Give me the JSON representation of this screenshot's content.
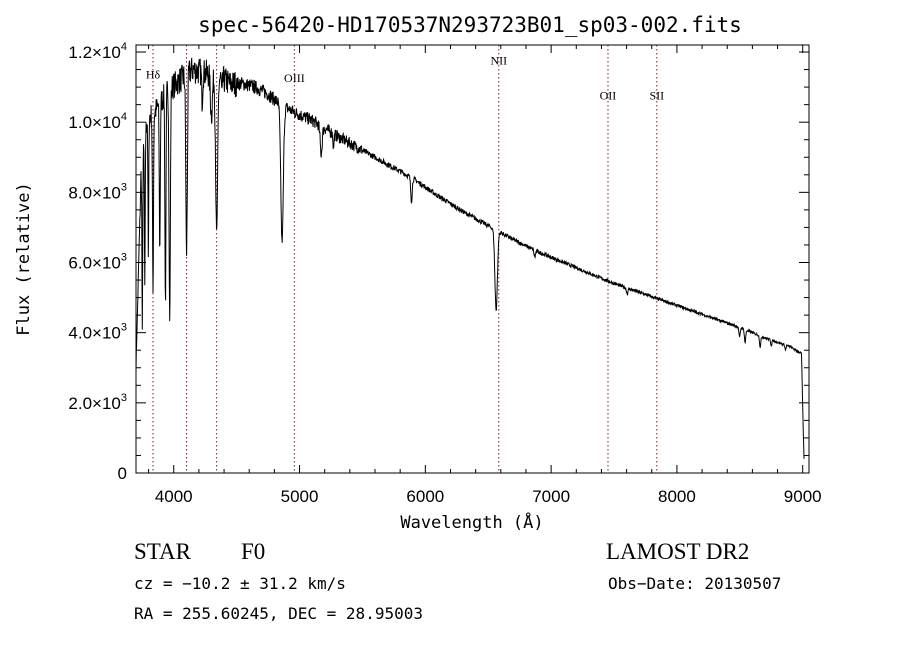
{
  "chart_data": {
    "type": "line",
    "title": "spec-56420-HD170537N293723B01_sp03-002.fits",
    "xlabel": "Wavelength (Å)",
    "ylabel": "Flux (relative)",
    "xlim": [
      3700,
      9050
    ],
    "ylim": [
      0,
      12200
    ],
    "x_ticks": [
      {
        "value": 4000,
        "label": "4000"
      },
      {
        "value": 5000,
        "label": "5000"
      },
      {
        "value": 6000,
        "label": "6000"
      },
      {
        "value": 7000,
        "label": "7000"
      },
      {
        "value": 8000,
        "label": "8000"
      },
      {
        "value": 9000,
        "label": "9000"
      }
    ],
    "y_ticks": [
      {
        "value": 0,
        "mant": "0",
        "exp": ""
      },
      {
        "value": 2000,
        "mant": "2.0×10",
        "exp": "3"
      },
      {
        "value": 4000,
        "mant": "4.0×10",
        "exp": "3"
      },
      {
        "value": 6000,
        "mant": "6.0×10",
        "exp": "3"
      },
      {
        "value": 8000,
        "mant": "8.0×10",
        "exp": "3"
      },
      {
        "value": 10000,
        "mant": "1.0×10",
        "exp": "4"
      },
      {
        "value": 12000,
        "mant": "1.2×10",
        "exp": "4"
      }
    ],
    "grid": false,
    "line_color": "#000000",
    "marker_color": "#8b1a1a",
    "line_markers": [
      {
        "wavelength": 3835,
        "label": "Hδ",
        "label_y": 11250
      },
      {
        "wavelength": 4102,
        "label": "",
        "label_y": 11900
      },
      {
        "wavelength": 4341,
        "label": "",
        "label_y": 10800
      },
      {
        "wavelength": 4959,
        "label": "OIII",
        "label_y": 11150
      },
      {
        "wavelength": 6584,
        "label": "NII",
        "label_y": 11650
      },
      {
        "wavelength": 7452,
        "label": "OII",
        "label_y": 10650
      },
      {
        "wavelength": 7840,
        "label": "SII",
        "label_y": 10650
      }
    ],
    "continuum": [
      [
        3700,
        3000
      ],
      [
        3740,
        8500
      ],
      [
        3790,
        10100
      ],
      [
        3850,
        10300
      ],
      [
        3950,
        10900
      ],
      [
        4050,
        11200
      ],
      [
        4150,
        11500
      ],
      [
        4250,
        11400
      ],
      [
        4350,
        11300
      ],
      [
        4450,
        11100
      ],
      [
        4550,
        11100
      ],
      [
        4650,
        11000
      ],
      [
        4750,
        10800
      ],
      [
        4850,
        10500
      ],
      [
        4950,
        10300
      ],
      [
        5100,
        10050
      ],
      [
        5300,
        9600
      ],
      [
        5500,
        9200
      ],
      [
        5700,
        8800
      ],
      [
        5900,
        8400
      ],
      [
        6100,
        7900
      ],
      [
        6300,
        7450
      ],
      [
        6500,
        7050
      ],
      [
        6700,
        6650
      ],
      [
        6900,
        6300
      ],
      [
        7100,
        6000
      ],
      [
        7300,
        5700
      ],
      [
        7500,
        5400
      ],
      [
        7700,
        5150
      ],
      [
        7900,
        4900
      ],
      [
        8100,
        4650
      ],
      [
        8300,
        4400
      ],
      [
        8500,
        4150
      ],
      [
        8700,
        3850
      ],
      [
        8900,
        3600
      ],
      [
        8990,
        3400
      ],
      [
        9010,
        400
      ]
    ],
    "absorption_lines": [
      {
        "center": 3750,
        "depth": 0.55,
        "width": 3
      },
      {
        "center": 3770,
        "depth": 0.45,
        "width": 3
      },
      {
        "center": 3798,
        "depth": 0.4,
        "width": 3
      },
      {
        "center": 3835,
        "depth": 0.5,
        "width": 4
      },
      {
        "center": 3889,
        "depth": 0.4,
        "width": 4
      },
      {
        "center": 3934,
        "depth": 0.55,
        "width": 4
      },
      {
        "center": 3968,
        "depth": 0.6,
        "width": 5
      },
      {
        "center": 4102,
        "depth": 0.45,
        "width": 6
      },
      {
        "center": 4226,
        "depth": 0.07,
        "width": 4
      },
      {
        "center": 4300,
        "depth": 0.1,
        "width": 8
      },
      {
        "center": 4341,
        "depth": 0.4,
        "width": 8
      },
      {
        "center": 4383,
        "depth": 0.05,
        "width": 3
      },
      {
        "center": 4861,
        "depth": 0.37,
        "width": 10
      },
      {
        "center": 5172,
        "depth": 0.08,
        "width": 8
      },
      {
        "center": 5270,
        "depth": 0.04,
        "width": 4
      },
      {
        "center": 5890,
        "depth": 0.08,
        "width": 6
      },
      {
        "center": 6563,
        "depth": 0.33,
        "width": 10
      },
      {
        "center": 6870,
        "depth": 0.03,
        "width": 6
      },
      {
        "center": 7605,
        "depth": 0.03,
        "width": 6
      },
      {
        "center": 8498,
        "depth": 0.07,
        "width": 5
      },
      {
        "center": 8542,
        "depth": 0.09,
        "width": 5
      },
      {
        "center": 8662,
        "depth": 0.08,
        "width": 5
      },
      {
        "center": 8750,
        "depth": 0.04,
        "width": 4
      },
      {
        "center": 8863,
        "depth": 0.04,
        "width": 4
      }
    ]
  },
  "info": {
    "object_class": "STAR",
    "subclass": "F0",
    "survey": "LAMOST DR2",
    "redshift": "cz = −10.2 ± 31.2 km/s",
    "obs_date": "Obs−Date: 20130507",
    "coordinates": "RA = 255.60245, DEC =  28.95003"
  }
}
